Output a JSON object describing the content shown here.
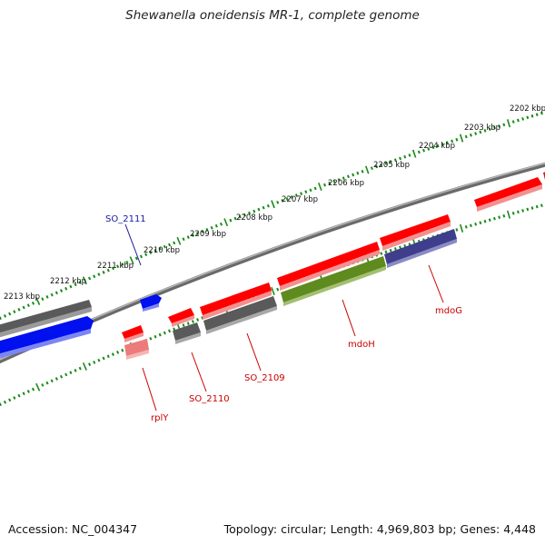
{
  "title": "Shewanella oneidensis MR-1, complete genome",
  "ruler": {
    "upper_labels": [
      "2202 kbp",
      "2203 kbp",
      "2204 kbp",
      "2205 kbp",
      "2206 kbp",
      "2207 kbp",
      "2208 kbp",
      "2209 kbp",
      "2210 kbp",
      "2211 kbp",
      "2212 kbp",
      "2213 kbp"
    ]
  },
  "genes": [
    {
      "name": "SO_2111",
      "color": "#1a1aa0"
    },
    {
      "name": "rplY",
      "color": "#cc0000"
    },
    {
      "name": "SO_2110",
      "color": "#cc0000"
    },
    {
      "name": "SO_2109",
      "color": "#cc0000"
    },
    {
      "name": "mdoH",
      "color": "#cc0000"
    },
    {
      "name": "mdoG",
      "color": "#cc0000"
    }
  ],
  "colors": {
    "forward_red": "#ff0000",
    "blue": "#0000ff",
    "grey": "#666666",
    "olive": "#6b8e23",
    "purple": "#4a4a9a",
    "pink": "#f08080",
    "backbone": "#808080",
    "tick_green": "#1a8a1a"
  },
  "footer": {
    "accession": "Accession: NC_004347",
    "summary": "Topology: circular; Length: 4,969,803 bp; Genes: 4,448"
  }
}
